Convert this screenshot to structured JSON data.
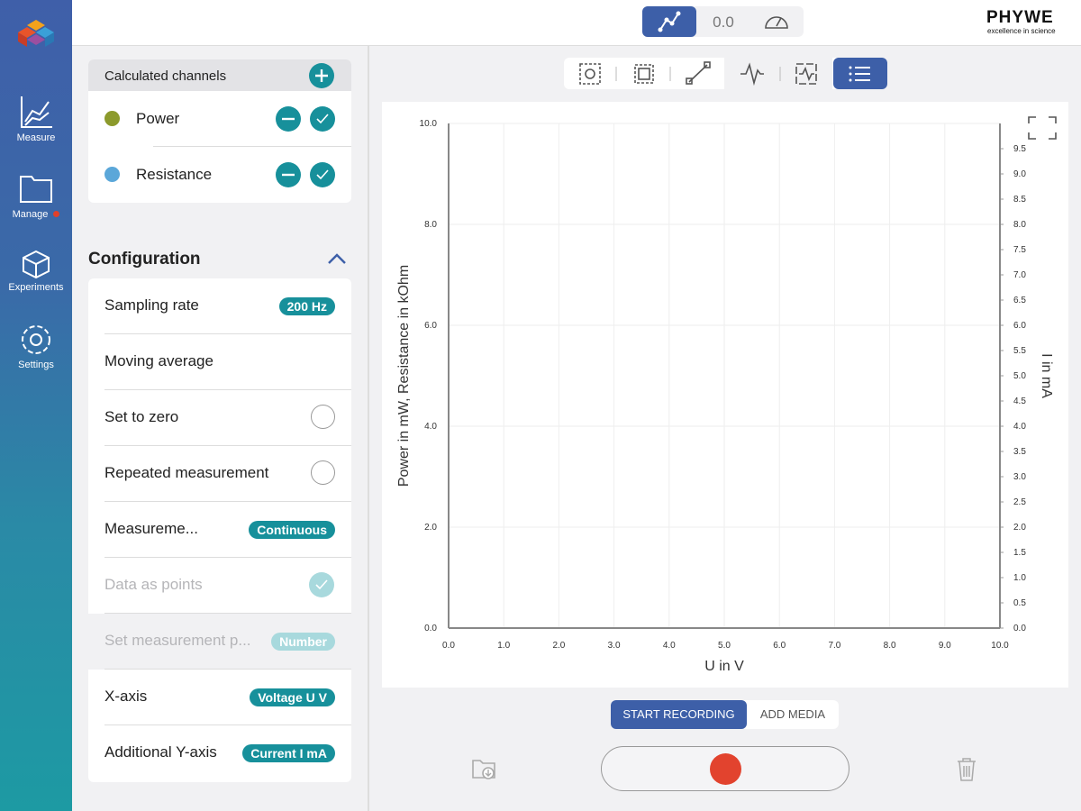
{
  "sidebar": {
    "items": [
      {
        "label": "Measure"
      },
      {
        "label": "Manage"
      },
      {
        "label": "Experiments"
      },
      {
        "label": "Settings"
      }
    ]
  },
  "toolbar": {
    "value": "0.0"
  },
  "brand": {
    "name": "PHYWE",
    "tagline": "excellence in science"
  },
  "channels": {
    "title": "Calculated channels",
    "items": [
      {
        "name": "Power",
        "color": "#8c9a2c"
      },
      {
        "name": "Resistance",
        "color": "#5ba7d9"
      }
    ]
  },
  "configuration": {
    "title": "Configuration",
    "rows": [
      {
        "label": "Sampling rate",
        "badge": "200 Hz"
      },
      {
        "label": "Moving average"
      },
      {
        "label": "Set to zero"
      },
      {
        "label": "Repeated measurement"
      },
      {
        "label": "Measureme...",
        "badge": "Continuous"
      },
      {
        "label": "Data as points"
      },
      {
        "label": "Set measurement p...",
        "badge": "Number"
      },
      {
        "label": "X-axis",
        "badge": "Voltage U V"
      },
      {
        "label": "Additional Y-axis",
        "badge": "Current I mA"
      }
    ]
  },
  "plot": {
    "xlabel": "U in V",
    "ylabel": "Power in mW, Resistance in kOhm",
    "y2label": "I in mA",
    "xlim": [
      0,
      10
    ],
    "xticks": [
      {
        "value": 0,
        "label": "0.0"
      },
      {
        "value": 1,
        "label": "1.0"
      },
      {
        "value": 2,
        "label": "2.0"
      },
      {
        "value": 3,
        "label": "3.0"
      },
      {
        "value": 4,
        "label": "4.0"
      },
      {
        "value": 5,
        "label": "5.0"
      },
      {
        "value": 6,
        "label": "6.0"
      },
      {
        "value": 7,
        "label": "7.0"
      },
      {
        "value": 8,
        "label": "8.0"
      },
      {
        "value": 9,
        "label": "9.0"
      },
      {
        "value": 10,
        "label": "10.0"
      }
    ],
    "ylim": [
      0,
      10
    ],
    "yticks": [
      {
        "value": 0,
        "label": "0.0"
      },
      {
        "value": 2,
        "label": "2.0"
      },
      {
        "value": 4,
        "label": "4.0"
      },
      {
        "value": 6,
        "label": "6.0"
      },
      {
        "value": 8,
        "label": "8.0"
      },
      {
        "value": 10,
        "label": "10.0"
      }
    ],
    "y2lim": [
      0,
      10
    ],
    "y2ticks": [
      {
        "value": 0,
        "label": "0.0"
      },
      {
        "value": 0.5,
        "label": "0.5"
      },
      {
        "value": 1,
        "label": "1.0"
      },
      {
        "value": 1.5,
        "label": "1.5"
      },
      {
        "value": 2,
        "label": "2.0"
      },
      {
        "value": 2.5,
        "label": "2.5"
      },
      {
        "value": 3,
        "label": "3.0"
      },
      {
        "value": 3.5,
        "label": "3.5"
      },
      {
        "value": 4,
        "label": "4.0"
      },
      {
        "value": 4.5,
        "label": "4.5"
      },
      {
        "value": 5,
        "label": "5.0"
      },
      {
        "value": 5.5,
        "label": "5.5"
      },
      {
        "value": 6,
        "label": "6.0"
      },
      {
        "value": 6.5,
        "label": "6.5"
      },
      {
        "value": 7,
        "label": "7.0"
      },
      {
        "value": 7.5,
        "label": "7.5"
      },
      {
        "value": 8,
        "label": "8.0"
      },
      {
        "value": 8.5,
        "label": "8.5"
      },
      {
        "value": 9,
        "label": "9.0"
      },
      {
        "value": 9.5,
        "label": "9.5"
      }
    ],
    "grid": true
  },
  "actions": {
    "record": "START RECORDING",
    "media": "ADD MEDIA"
  }
}
